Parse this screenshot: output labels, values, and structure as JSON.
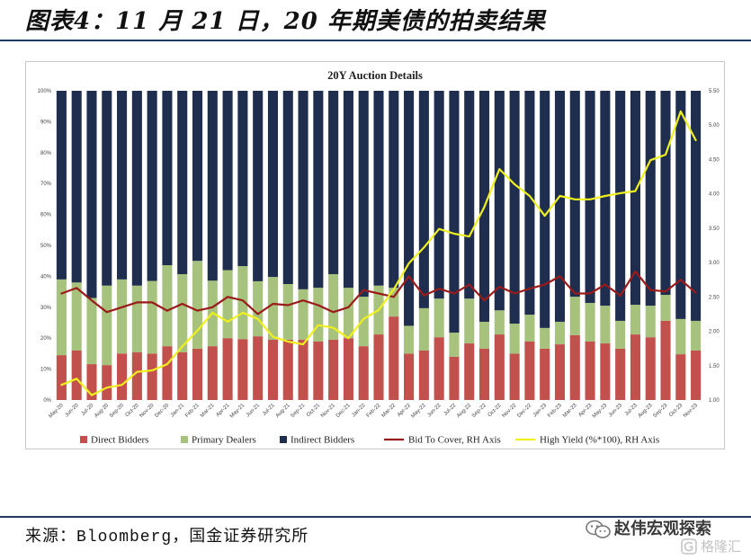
{
  "header": {
    "title": "图表4：11 月 21 日，20 年期美债的拍卖结果"
  },
  "footer": {
    "source": "来源：Bloomberg，国金证券研究所",
    "watermark_text": "赵伟宏观探索",
    "logo_text": "格隆汇"
  },
  "icons": {
    "watermark": "wechat-icon",
    "logo": "g-logo-icon"
  },
  "colors": {
    "rule": "#1f3864",
    "watermark": "#777777",
    "logo": "#c4c4c4"
  },
  "chart_data": {
    "type": "bar",
    "stacked": true,
    "title": "20Y Auction Details",
    "xlabel": "",
    "ylabel": "",
    "grid": false,
    "legend": "bottom",
    "categories": [
      "May-20",
      "Jun-20",
      "Jul-20",
      "Aug-20",
      "Sep-20",
      "Oct-20",
      "Nov-20",
      "Dec-20",
      "Jan-21",
      "Feb-21",
      "Mar-21",
      "Apr-21",
      "May-21",
      "Jun-21",
      "Jul-21",
      "Aug-21",
      "Sep-21",
      "Oct-21",
      "Nov-21",
      "Dec-21",
      "Jan-22",
      "Feb-22",
      "Mar-22",
      "Apr-22",
      "May-22",
      "Jun-22",
      "Jul-22",
      "Aug-22",
      "Sep-22",
      "Oct-22",
      "Nov-22",
      "Dec-22",
      "Jan-23",
      "Feb-23",
      "Mar-23",
      "Apr-23",
      "May-23",
      "Jun-23",
      "Jul-23",
      "Aug-23",
      "Sep-23",
      "Oct-23",
      "Nov-23"
    ],
    "y_left": {
      "range": [
        0,
        100
      ],
      "tick_labels": [
        "0%",
        "10%",
        "20%",
        "30%",
        "40%",
        "50%",
        "60%",
        "70%",
        "80%",
        "90%",
        "100%"
      ]
    },
    "y_right": {
      "range": [
        1.0,
        5.5
      ],
      "tick_labels": [
        "1.00",
        "1.50",
        "2.00",
        "2.50",
        "3.00",
        "3.50",
        "4.00",
        "4.50",
        "5.00",
        "5.50"
      ]
    },
    "series": [
      {
        "name": "Direct Bidders",
        "type": "bar",
        "color": "#c2504c",
        "values": [
          14.5,
          16.0,
          11.6,
          11.3,
          15.0,
          15.4,
          15.0,
          17.4,
          15.4,
          16.6,
          17.4,
          20.0,
          19.7,
          20.6,
          19.5,
          19.5,
          19.5,
          18.9,
          19.5,
          20.0,
          17.4,
          21.2,
          27.0,
          15.0,
          16.0,
          20.3,
          14.0,
          18.3,
          16.6,
          21.2,
          15.0,
          18.9,
          16.6,
          18.0,
          21.0,
          18.9,
          18.3,
          16.6,
          21.2,
          20.3,
          25.6,
          14.8,
          16.0
        ]
      },
      {
        "name": "Primary Dealers",
        "type": "bar",
        "color": "#a6c27c",
        "values": [
          24.5,
          22.0,
          21.4,
          25.7,
          24.0,
          21.6,
          23.5,
          26.2,
          25.3,
          28.4,
          21.2,
          22.0,
          23.6,
          17.8,
          20.3,
          18.0,
          16.3,
          17.4,
          21.2,
          16.3,
          16.0,
          15.8,
          9.3,
          9.0,
          13.7,
          12.5,
          7.8,
          14.5,
          8.7,
          7.8,
          9.7,
          8.7,
          6.7,
          7.3,
          12.4,
          12.5,
          12.2,
          9.0,
          9.6,
          10.2,
          8.4,
          11.4,
          9.6
        ]
      },
      {
        "name": "Indirect Bidders",
        "type": "bar",
        "color": "#1f2e4e",
        "values": [
          61.0,
          62.0,
          67.0,
          63.0,
          61.0,
          63.0,
          61.5,
          56.4,
          59.3,
          55.0,
          61.4,
          58.0,
          56.7,
          61.6,
          60.2,
          62.5,
          64.2,
          63.7,
          59.3,
          63.7,
          66.6,
          63.0,
          63.7,
          76.0,
          70.3,
          67.2,
          78.2,
          67.2,
          74.7,
          71.0,
          75.3,
          72.4,
          76.7,
          74.7,
          66.6,
          68.6,
          69.5,
          74.4,
          69.2,
          69.5,
          66.0,
          73.8,
          74.4
        ]
      },
      {
        "name": "Bid To Cover, RH Axis",
        "type": "line",
        "y_axis": "right",
        "color": "#9b1b1b",
        "values": [
          2.55,
          2.63,
          2.45,
          2.28,
          2.35,
          2.42,
          2.42,
          2.3,
          2.4,
          2.3,
          2.35,
          2.5,
          2.45,
          2.25,
          2.4,
          2.38,
          2.45,
          2.38,
          2.28,
          2.35,
          2.6,
          2.55,
          2.5,
          2.8,
          2.52,
          2.62,
          2.55,
          2.68,
          2.45,
          2.65,
          2.55,
          2.62,
          2.68,
          2.8,
          2.55,
          2.55,
          2.68,
          2.52,
          2.87,
          2.6,
          2.58,
          2.75,
          2.56
        ]
      },
      {
        "name": "High Yield (%*100), RH Axis",
        "type": "line",
        "y_axis": "right",
        "color": "#f0f01e",
        "values": [
          1.22,
          1.31,
          1.07,
          1.18,
          1.22,
          1.41,
          1.43,
          1.52,
          1.78,
          2.01,
          2.27,
          2.14,
          2.27,
          2.18,
          1.92,
          1.85,
          1.81,
          2.09,
          2.05,
          1.9,
          2.18,
          2.31,
          2.61,
          2.99,
          3.22,
          3.49,
          3.42,
          3.38,
          3.81,
          4.36,
          4.14,
          3.97,
          3.68,
          3.97,
          3.92,
          3.92,
          3.97,
          4.01,
          4.04,
          4.49,
          4.57,
          5.2,
          4.78
        ]
      }
    ]
  }
}
